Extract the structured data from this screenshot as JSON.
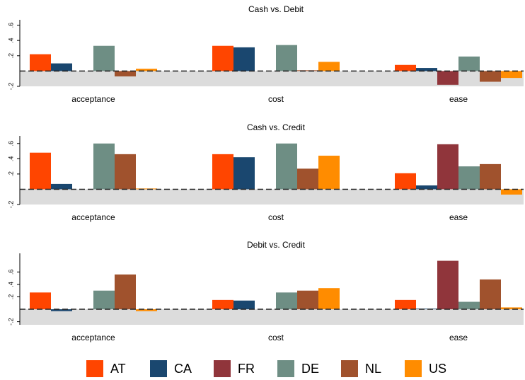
{
  "chart_data": [
    {
      "type": "bar",
      "title": "Cash vs. Debit",
      "categories": [
        "acceptance",
        "cost",
        "ease"
      ],
      "series": [
        {
          "name": "AT",
          "color": "#ff4500",
          "values": [
            0.22,
            0.33,
            0.08
          ]
        },
        {
          "name": "CA",
          "color": "#1a476f",
          "values": [
            0.1,
            0.31,
            0.04
          ]
        },
        {
          "name": "FR",
          "color": "#90353b",
          "values": [
            null,
            null,
            -0.18
          ]
        },
        {
          "name": "DE",
          "color": "#6e8e84",
          "values": [
            0.33,
            0.34,
            0.19
          ]
        },
        {
          "name": "NL",
          "color": "#a0522d",
          "values": [
            -0.07,
            0.01,
            -0.14
          ]
        },
        {
          "name": "US",
          "color": "#ff8c00",
          "values": [
            0.03,
            0.12,
            -0.09
          ]
        }
      ],
      "ylim": [
        -0.2,
        0.67
      ],
      "yticks": [
        {
          "value": -0.2,
          "label": "-.2"
        },
        {
          "value": 0.2,
          "label": ".2"
        },
        {
          "value": 0.4,
          "label": ".4"
        },
        {
          "value": 0.6,
          "label": ".6"
        }
      ]
    },
    {
      "type": "bar",
      "title": "Cash vs. Credit",
      "categories": [
        "acceptance",
        "cost",
        "ease"
      ],
      "series": [
        {
          "name": "AT",
          "color": "#ff4500",
          "values": [
            0.48,
            0.46,
            0.21
          ]
        },
        {
          "name": "CA",
          "color": "#1a476f",
          "values": [
            0.07,
            0.42,
            0.05
          ]
        },
        {
          "name": "FR",
          "color": "#90353b",
          "values": [
            null,
            null,
            0.59
          ]
        },
        {
          "name": "DE",
          "color": "#6e8e84",
          "values": [
            0.6,
            0.6,
            0.3
          ]
        },
        {
          "name": "NL",
          "color": "#a0522d",
          "values": [
            0.46,
            0.27,
            0.33
          ]
        },
        {
          "name": "US",
          "color": "#ff8c00",
          "values": [
            0.01,
            0.44,
            -0.07
          ]
        }
      ],
      "ylim": [
        -0.2,
        0.7
      ],
      "yticks": [
        {
          "value": -0.2,
          "label": "-.2"
        },
        {
          "value": 0.2,
          "label": ".2"
        },
        {
          "value": 0.4,
          "label": ".4"
        },
        {
          "value": 0.6,
          "label": ".6"
        }
      ]
    },
    {
      "type": "bar",
      "title": "Debit vs. Credit",
      "categories": [
        "acceptance",
        "cost",
        "ease"
      ],
      "series": [
        {
          "name": "AT",
          "color": "#ff4500",
          "values": [
            0.27,
            0.15,
            0.15
          ]
        },
        {
          "name": "CA",
          "color": "#1a476f",
          "values": [
            -0.03,
            0.14,
            0.01
          ]
        },
        {
          "name": "FR",
          "color": "#90353b",
          "values": [
            null,
            null,
            0.78
          ]
        },
        {
          "name": "DE",
          "color": "#6e8e84",
          "values": [
            0.3,
            0.27,
            0.12
          ]
        },
        {
          "name": "NL",
          "color": "#a0522d",
          "values": [
            0.56,
            0.3,
            0.48
          ]
        },
        {
          "name": "US",
          "color": "#ff8c00",
          "values": [
            -0.03,
            0.34,
            0.03
          ]
        }
      ],
      "ylim": [
        -0.25,
        0.9
      ],
      "yticks": [
        {
          "value": -0.2,
          "label": "-.2"
        },
        {
          "value": 0.2,
          "label": ".2"
        },
        {
          "value": 0.4,
          "label": ".4"
        },
        {
          "value": 0.6,
          "label": ".6"
        }
      ]
    }
  ]
}
